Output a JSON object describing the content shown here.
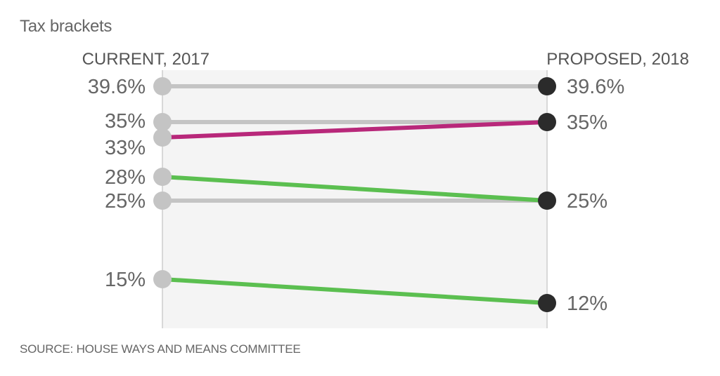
{
  "title": "Tax brackets",
  "source": "SOURCE: HOUSE WAYS AND MEANS COMMITTEE",
  "colors": {
    "unchanged": "#c4c4c4",
    "increase": "#b8287a",
    "decrease": "#5bbf50",
    "left_dot": "#c4c4c4",
    "right_dot": "#2b2b2b",
    "plot_bg": "#f4f4f4"
  },
  "chart_data": {
    "type": "slope",
    "left_label": "CURRENT, 2017",
    "right_label": "PROPOSED, 2018",
    "left_values": [
      39.6,
      35,
      33,
      28,
      25,
      15
    ],
    "left_value_labels": [
      "39.6%",
      "35%",
      "33%",
      "28%",
      "25%",
      "15%"
    ],
    "right_values": [
      39.6,
      35,
      25,
      12
    ],
    "right_value_labels": [
      "39.6%",
      "35%",
      "25%",
      "12%"
    ],
    "lines": [
      {
        "from": 39.6,
        "to": 39.6,
        "change": "unchanged"
      },
      {
        "from": 35,
        "to": 35,
        "change": "unchanged"
      },
      {
        "from": 33,
        "to": 35,
        "change": "increase"
      },
      {
        "from": 28,
        "to": 25,
        "change": "decrease"
      },
      {
        "from": 25,
        "to": 25,
        "change": "unchanged"
      },
      {
        "from": 15,
        "to": 12,
        "change": "decrease"
      }
    ]
  }
}
